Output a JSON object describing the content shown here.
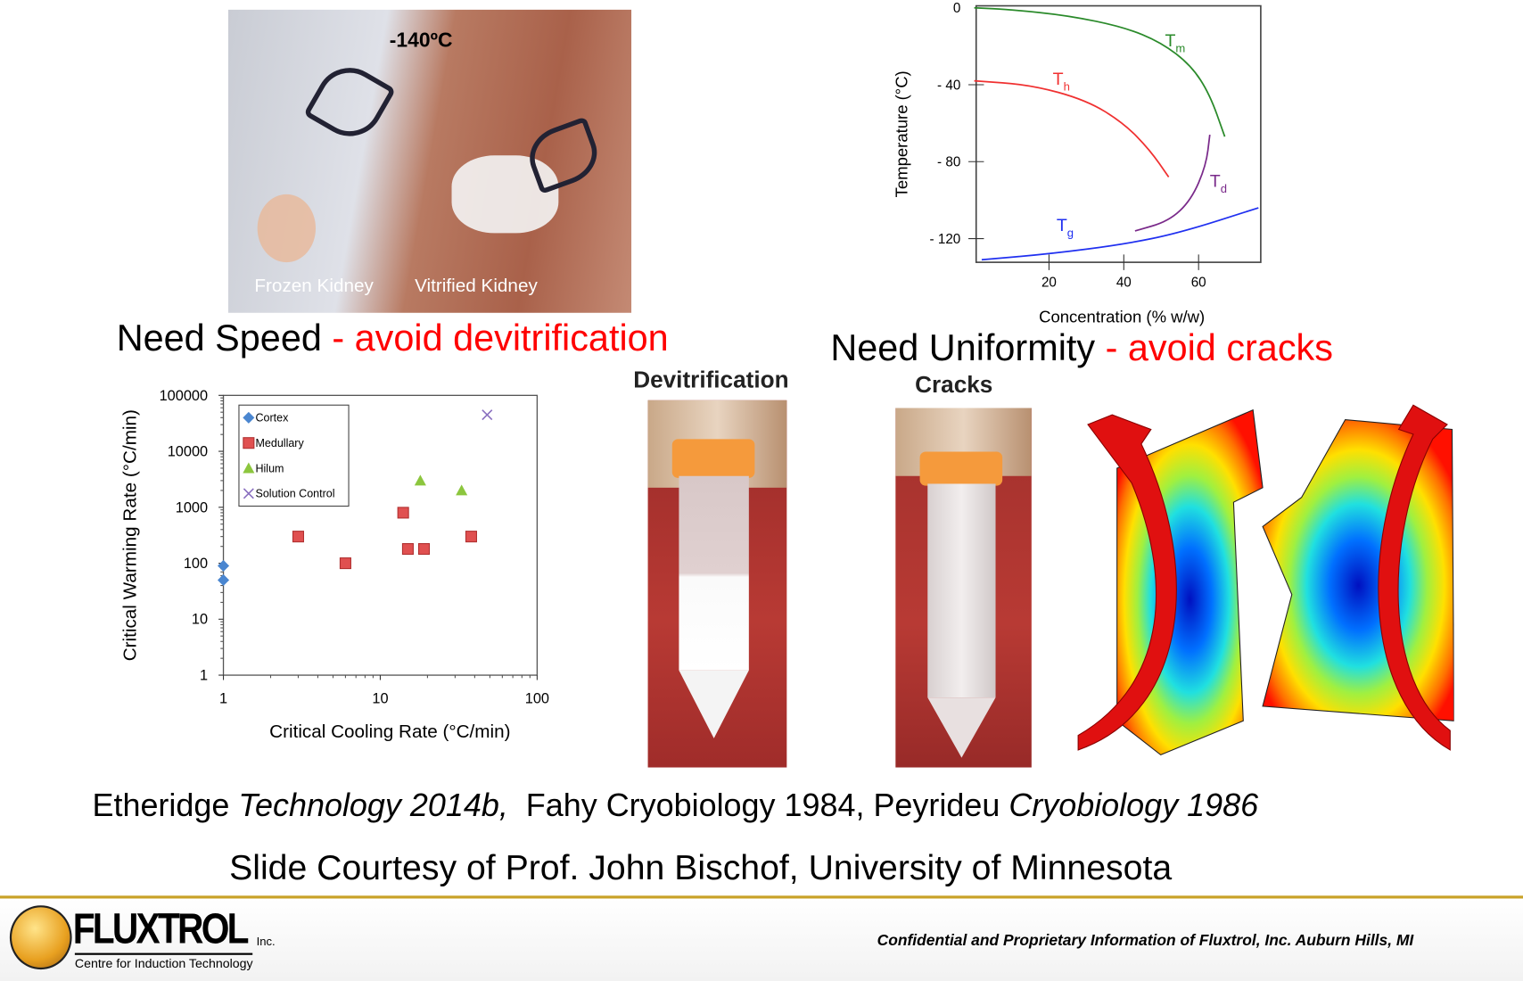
{
  "kidney_photo": {
    "temp_label": "-140ºC",
    "left_label": "Frozen Kidney",
    "right_label": "Vitrified Kidney"
  },
  "headings": {
    "speed": "Need Speed",
    "speed_red": " - avoid devitrification",
    "uniformity": "Need Uniformity",
    "uniformity_red": " - avoid cracks"
  },
  "photo_captions": {
    "devitrification": "Devitrification",
    "cracks": "Cracks"
  },
  "citation": {
    "a": "Etheridge ",
    "a_italic": "Technology 2014b,",
    "b": "  Fahy Cryobiology 1984, Peyrideu ",
    "b_italic": "Cryobiology 1986"
  },
  "courtesy": "Slide Courtesy of Prof. John Bischof, University of Minnesota",
  "footer": {
    "logo_name": "FLUXTROL",
    "logo_inc": "Inc.",
    "logo_tagline": "Centre for Induction Technology",
    "confidential": "Confidential and Proprietary Information of Fluxtrol, Inc. Auburn Hills, MI"
  },
  "colors": {
    "accent_gold": "#c9a227",
    "red": "#ff0000"
  },
  "chart_data": [
    {
      "type": "scatter",
      "xlabel": "Critical Cooling Rate (°C/min)",
      "ylabel": "Critical Warming Rate (°C/min)",
      "xscale": "log",
      "yscale": "log",
      "xlim": [
        1,
        100
      ],
      "ylim": [
        1,
        100000
      ],
      "xticks": [
        "1",
        "10",
        "100"
      ],
      "yticks": [
        "1",
        "10",
        "100",
        "1000",
        "10000",
        "100000"
      ],
      "legend_position": "top-left",
      "series": [
        {
          "name": "Cortex",
          "marker": "diamond",
          "color": "#4a86d0",
          "points": [
            [
              1,
              90
            ],
            [
              1,
              50
            ]
          ]
        },
        {
          "name": "Medullary",
          "marker": "square",
          "color": "#e05050",
          "points": [
            [
              3,
              300
            ],
            [
              6,
              100
            ],
            [
              14,
              800
            ],
            [
              15,
              180
            ],
            [
              19,
              180
            ],
            [
              38,
              300
            ]
          ]
        },
        {
          "name": "Hilum",
          "marker": "triangle",
          "color": "#8cc63e",
          "points": [
            [
              18,
              3000
            ],
            [
              33,
              2000
            ]
          ]
        },
        {
          "name": "Solution Control",
          "marker": "x",
          "color": "#8a70c0",
          "points": [
            [
              48,
              45000
            ]
          ]
        }
      ]
    },
    {
      "type": "line",
      "xlabel": "Concentration (% w/w)",
      "ylabel": "Temperature (°C)",
      "xlim": [
        0,
        77
      ],
      "ylim": [
        -135,
        0
      ],
      "xticks": [
        "20",
        "40",
        "60"
      ],
      "yticks": [
        "0",
        "- 40",
        "- 80",
        "- 120"
      ],
      "series": [
        {
          "name": "T",
          "sub": "m",
          "color": "#2a8a2a",
          "points": [
            [
              0,
              0
            ],
            [
              10,
              -1
            ],
            [
              25,
              -4
            ],
            [
              40,
              -10
            ],
            [
              50,
              -18
            ],
            [
              58,
              -30
            ],
            [
              63,
              -45
            ],
            [
              67,
              -67
            ]
          ],
          "label_at": [
            51,
            -20
          ]
        },
        {
          "name": "T",
          "sub": "h",
          "color": "#f03030",
          "points": [
            [
              0,
              -38
            ],
            [
              15,
              -40
            ],
            [
              30,
              -48
            ],
            [
              40,
              -60
            ],
            [
              47,
              -74
            ],
            [
              52,
              -88
            ]
          ],
          "label_at": [
            21,
            -40
          ]
        },
        {
          "name": "T",
          "sub": "d",
          "color": "#7a2a8a",
          "points": [
            [
              43,
              -116
            ],
            [
              52,
              -111
            ],
            [
              58,
              -100
            ],
            [
              62,
              -82
            ],
            [
              63,
              -66
            ]
          ],
          "label_at": [
            63,
            -93
          ]
        },
        {
          "name": "T",
          "sub": "g",
          "color": "#2030f0",
          "points": [
            [
              2,
              -131
            ],
            [
              20,
              -128
            ],
            [
              40,
              -123
            ],
            [
              55,
              -117
            ],
            [
              76,
              -104
            ]
          ],
          "label_at": [
            22,
            -116
          ]
        }
      ]
    }
  ]
}
